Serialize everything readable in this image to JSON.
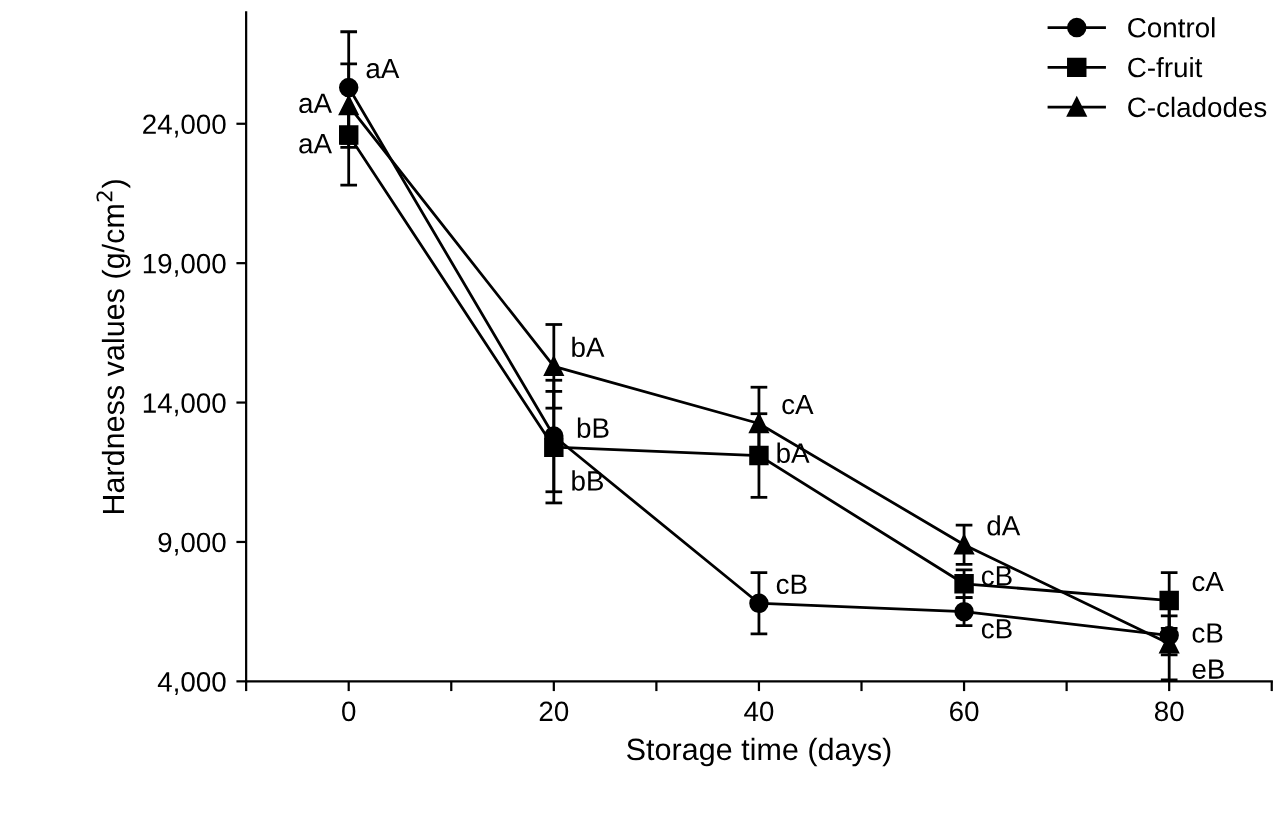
{
  "chart_data": {
    "type": "line",
    "xlabel": "Storage time (days)",
    "ylabel": "Hardness values (g/cm$^{2}$)",
    "x": [
      0,
      20,
      40,
      60,
      80
    ],
    "series": [
      {
        "name": "Control",
        "color": "#000000",
        "marker": "circle",
        "values": [
          25300,
          12800,
          6800,
          6500,
          5650
        ],
        "errors": [
          2000,
          2000,
          1100,
          500,
          700
        ]
      },
      {
        "name": "C-fruit",
        "color": "#000000",
        "marker": "square",
        "values": [
          23600,
          12400,
          12100,
          7500,
          6900
        ],
        "errors": [
          1800,
          2000,
          1500,
          500,
          1000
        ]
      },
      {
        "name": "C-cladodes",
        "color": "#000000",
        "marker": "triangle",
        "values": [
          24650,
          15300,
          13250,
          8900,
          5350
        ],
        "errors": [
          1500,
          1500,
          1300,
          700,
          1300
        ]
      }
    ],
    "xlim": [
      -10,
      90
    ],
    "xticks": [
      {
        "value": -10,
        "label": null
      },
      0,
      {
        "value": 10,
        "label": null
      },
      20,
      {
        "value": 30,
        "label": null
      },
      40,
      {
        "value": 50,
        "label": null
      },
      60,
      {
        "value": 70,
        "label": null
      },
      80,
      {
        "value": 90,
        "label": null
      }
    ],
    "ylim": [
      4000,
      28000
    ],
    "yticks": [
      {
        "value": 4000,
        "label": "4,000"
      },
      {
        "value": 9000,
        "label": "9,000"
      },
      {
        "value": 14000,
        "label": "14,000"
      },
      {
        "value": 19000,
        "label": "19,000"
      },
      {
        "value": 24000,
        "label": "24,000"
      }
    ],
    "grid": false,
    "legend": "top right",
    "line_style": "solid",
    "annotations": [
      {
        "text": "aA",
        "x": 0,
        "y": 25300
      },
      {
        "text": "aA",
        "x": 0,
        "y": 24650
      },
      {
        "text": "aA",
        "x": 0,
        "y": 23600
      },
      {
        "text": "bA",
        "x": 20,
        "y": 15300
      },
      {
        "text": "bB",
        "x": 20,
        "y": 12800
      },
      {
        "text": "bB",
        "x": 20,
        "y": 12400
      },
      {
        "text": "cA",
        "x": 40,
        "y": 13250
      },
      {
        "text": "bA",
        "x": 40,
        "y": 12100
      },
      {
        "text": "cB",
        "x": 40,
        "y": 6800
      },
      {
        "text": "dA",
        "x": 60,
        "y": 8900
      },
      {
        "text": "cB",
        "x": 60,
        "y": 7500
      },
      {
        "text": "cB",
        "x": 60,
        "y": 6500
      },
      {
        "text": "cA",
        "x": 80,
        "y": 6900
      },
      {
        "text": "cB",
        "x": 80,
        "y": 5650
      },
      {
        "text": "eB",
        "x": 80,
        "y": 5350
      }
    ]
  }
}
